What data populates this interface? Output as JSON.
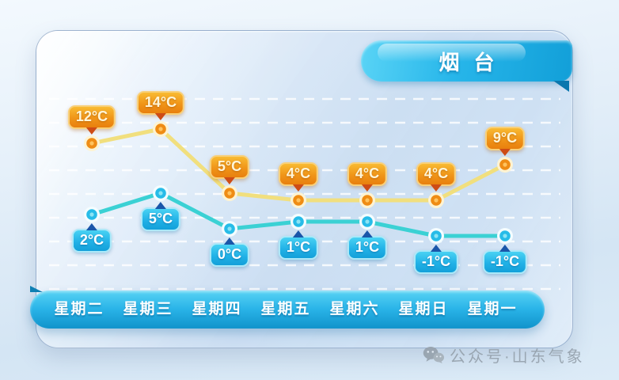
{
  "header": {
    "city": "烟台"
  },
  "chart_data": {
    "type": "line",
    "title": "烟台",
    "categories": [
      "星期二",
      "星期三",
      "星期四",
      "星期五",
      "星期六",
      "星期日",
      "星期一"
    ],
    "unit": "°C",
    "series": [
      {
        "name": "high",
        "values": [
          12,
          14,
          5,
          4,
          4,
          4,
          9
        ],
        "line_color": "#f1df7e",
        "point_outer": "#fdf3d2",
        "point_fill": "#ef8c14",
        "point_dot": "#ffc35e",
        "badge_style": "orange",
        "label_position": "above"
      },
      {
        "name": "low",
        "values": [
          2,
          5,
          0,
          1,
          1,
          -1,
          -1
        ],
        "line_color": "#3bd1d4",
        "point_outer": "#f4fdff",
        "point_fill": "#27bce8",
        "point_dot": "#8ce4f4",
        "badge_style": "cyan",
        "label_position": "below"
      }
    ],
    "grid": "horizontal-dashed-white",
    "legend": "none",
    "value_labels": "badges-with-unit"
  },
  "watermark": {
    "icon": "wechat-icon",
    "text": "公众号·山东气象"
  },
  "colors": {
    "high_accent": "#ef8c14",
    "high_line": "#f1df7e",
    "low_accent": "#27bce8",
    "low_line": "#3bd1d4",
    "ribbon": "#1fadе3",
    "bar_top": "#58d3f4",
    "bar_bottom": "#1193cb"
  }
}
